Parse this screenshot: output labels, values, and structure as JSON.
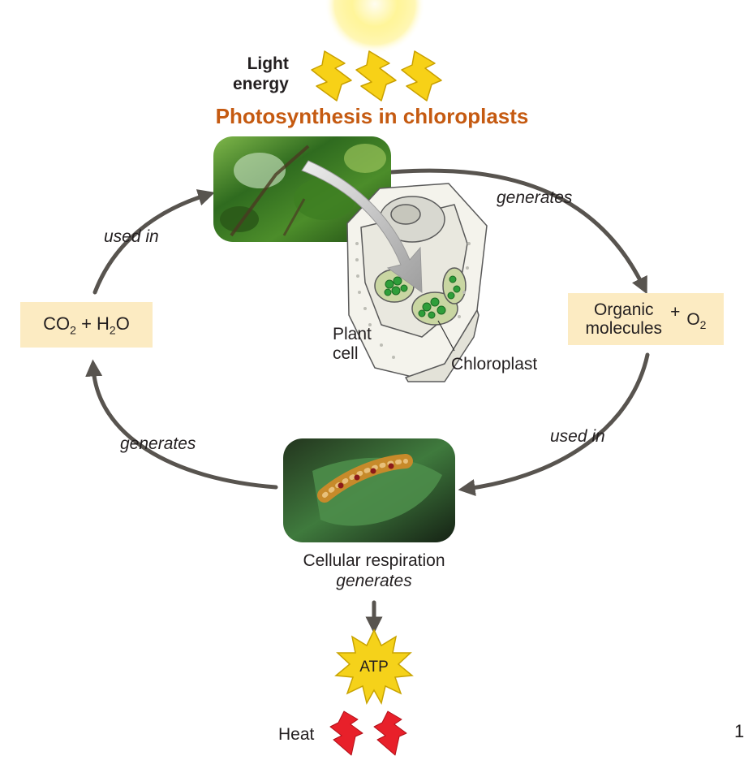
{
  "light": {
    "line1": "Light",
    "line2": "energy"
  },
  "title": "Photosynthesis in chloroplasts",
  "colors": {
    "title": "#c55a11",
    "arrow": "#58544f",
    "box_fill": "#fcebc2",
    "bolt_yellow": "#f7d117",
    "bolt_red": "#e8202a",
    "chloroplast_green": "#2f9e3a"
  },
  "left_box": {
    "co": "CO",
    "sub1": "2",
    "plus": " + H",
    "sub2": "2",
    "o": "O"
  },
  "right_box": {
    "line1": "Organic",
    "line2": "molecules",
    "plus": "+",
    "o": "O",
    "sub": "2"
  },
  "arc_labels": {
    "top_left": "used in",
    "top_right": "generates",
    "bottom_left": "generates",
    "bottom_right": "used in"
  },
  "cell_labels": {
    "plant_line1": "Plant",
    "plant_line2": "cell",
    "chloroplast": "Chloroplast"
  },
  "respiration": {
    "line1": "Cellular respiration",
    "line2": "generates"
  },
  "atp": "ATP",
  "heat": "Heat",
  "page_number": "1"
}
